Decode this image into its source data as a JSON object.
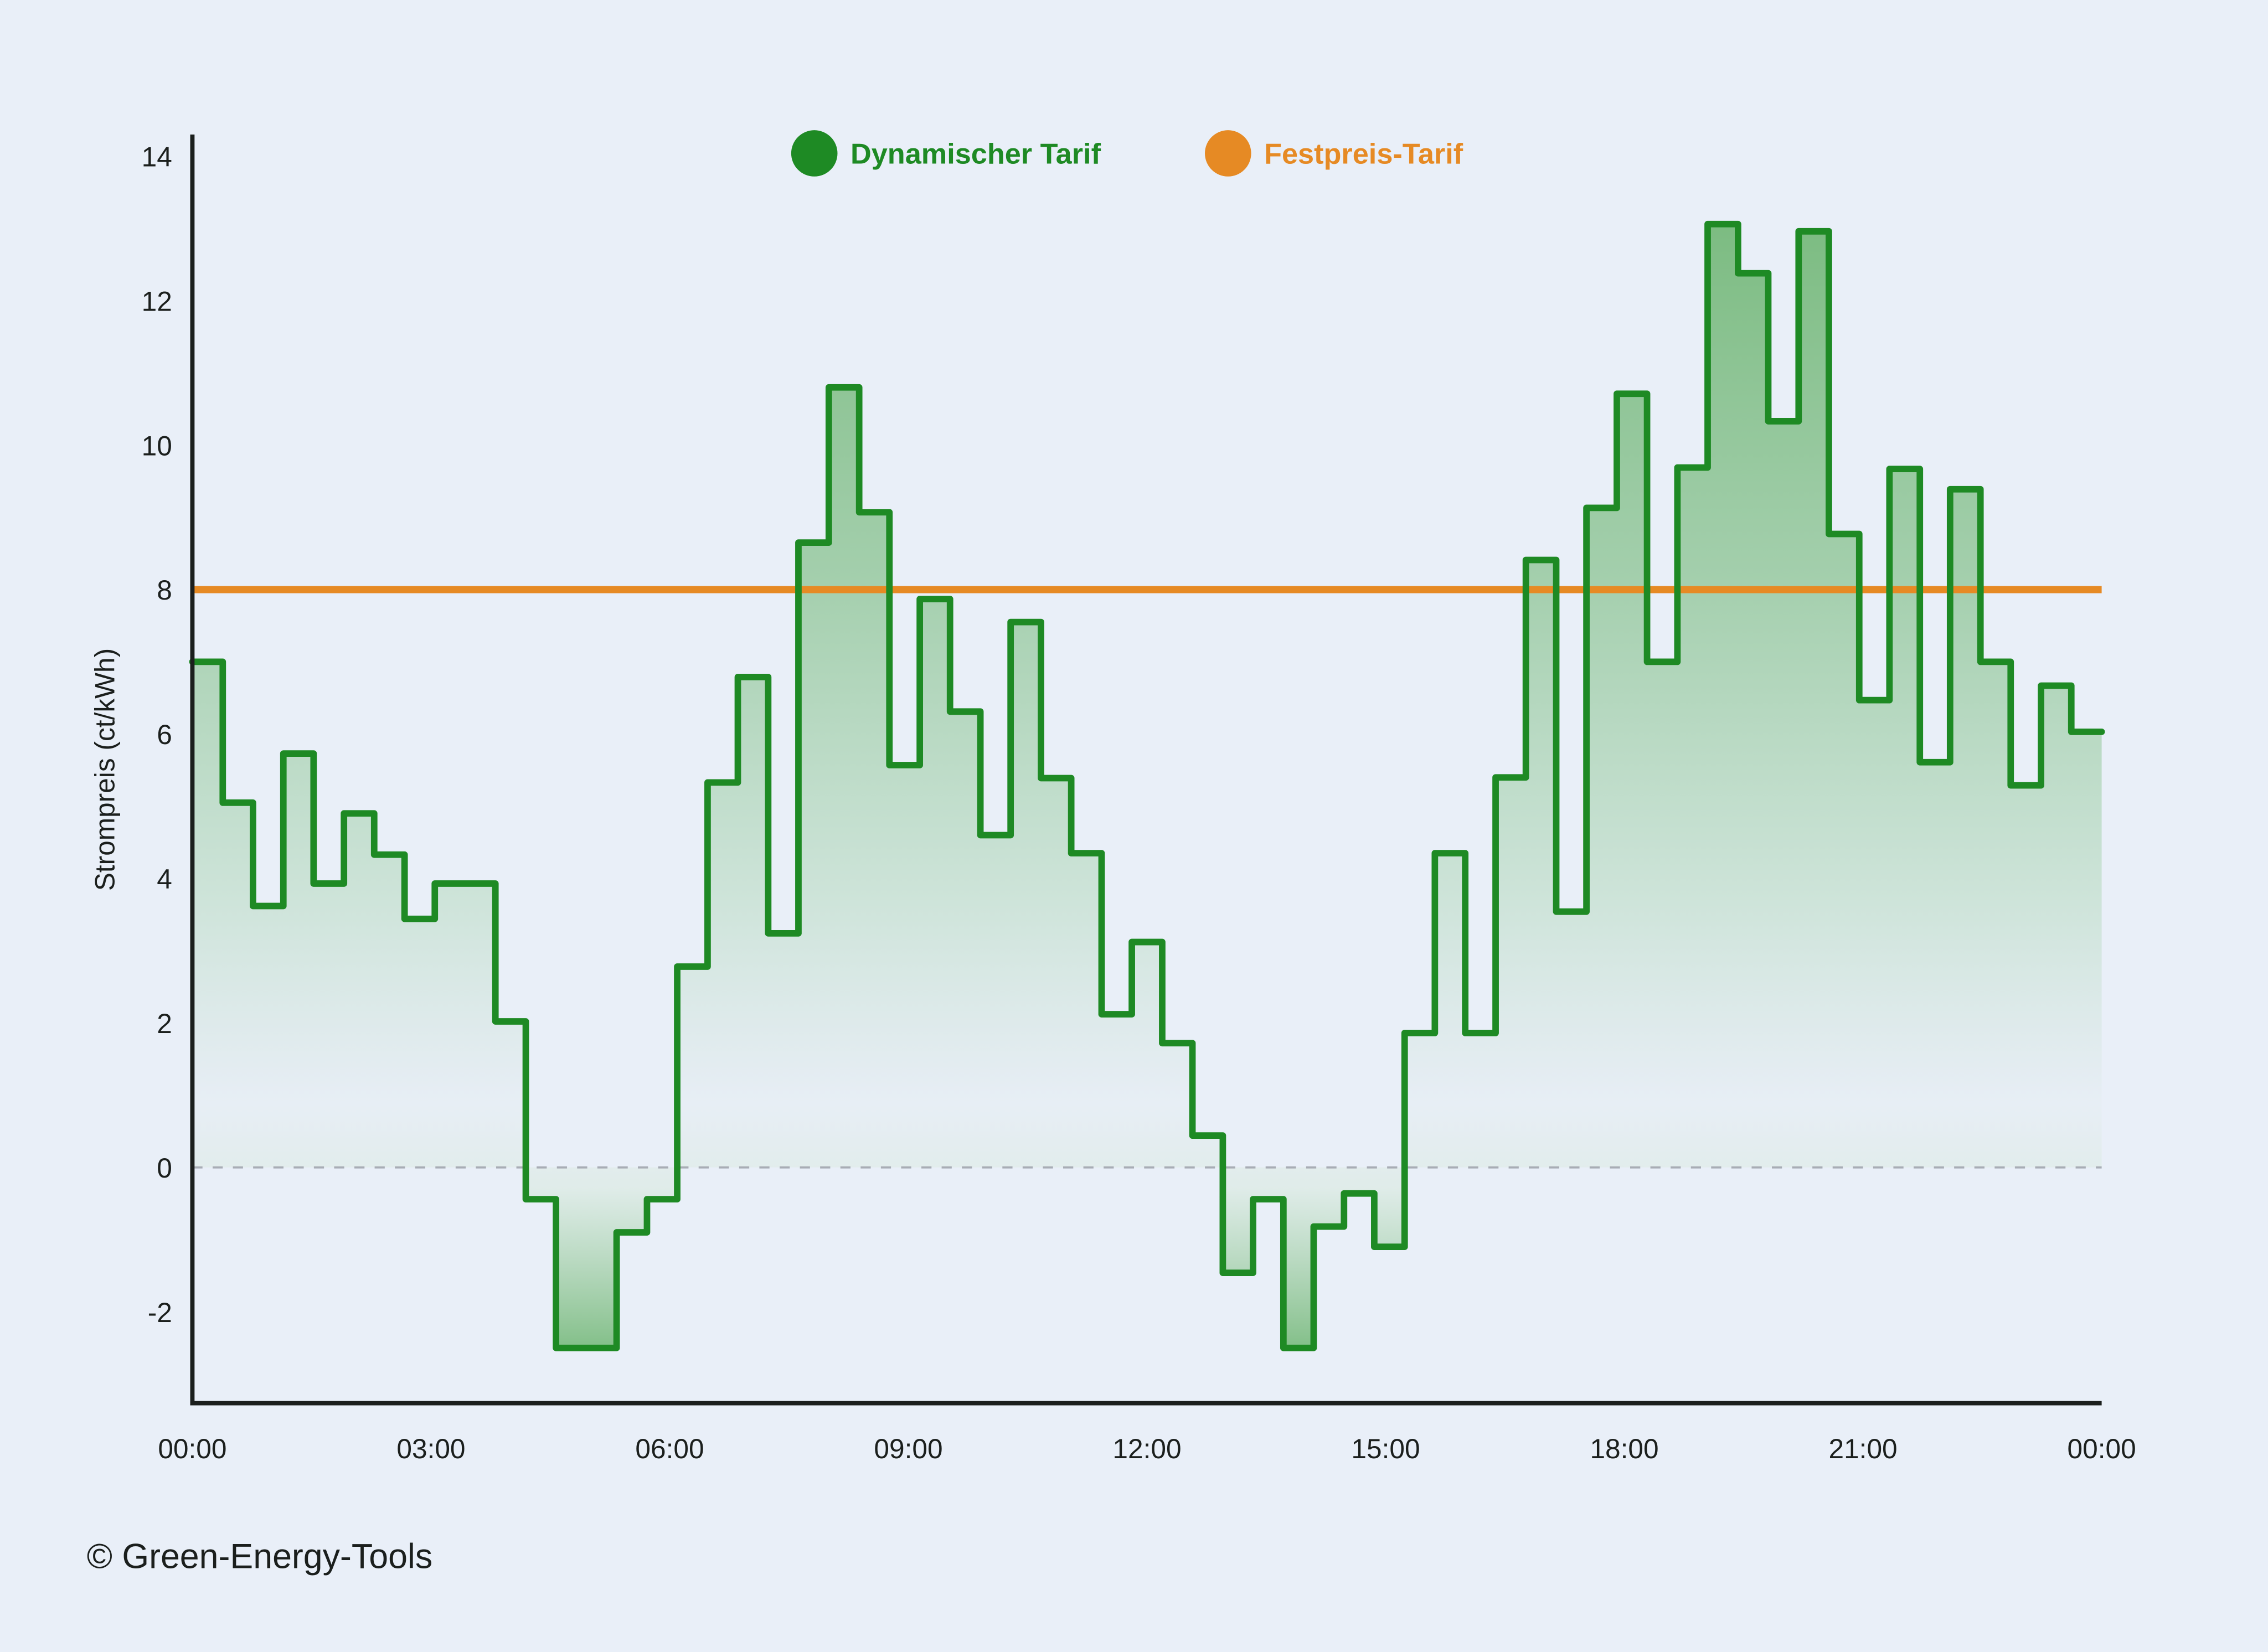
{
  "chart_data": {
    "type": "line",
    "subtype": "step-area",
    "title": "",
    "xlabel": "",
    "ylabel": "Strompreis (ct/kWh)",
    "ylim": [
      -3.3,
      14.3
    ],
    "xlim": [
      0,
      24
    ],
    "yticks": [
      -2,
      0,
      2,
      4,
      6,
      8,
      10,
      12,
      14
    ],
    "ytick_labels": [
      "-2",
      "0",
      "2",
      "4",
      "6",
      "8",
      "10",
      "12",
      "14"
    ],
    "xticks": [
      0,
      3,
      6,
      9,
      12,
      15,
      18,
      21,
      24
    ],
    "xtick_labels": [
      "00:00",
      "03:00",
      "06:00",
      "09:00",
      "12:00",
      "15:00",
      "18:00",
      "21:00",
      "00:00"
    ],
    "grid": false,
    "zero_line": {
      "style": "dashed",
      "color": "#a8adb5"
    },
    "legend_position": "top-center",
    "legend": [
      {
        "label": "Dynamischer Tarif",
        "color": "#1e8a24"
      },
      {
        "label": "Festpreis-Tarif",
        "color": "#e68a24"
      }
    ],
    "series": [
      {
        "name": "Dynamischer Tarif",
        "color": "#1e8a24",
        "kind": "step",
        "step_hours": 0.381,
        "values": [
          7.0,
          5.05,
          3.62,
          5.73,
          3.93,
          4.9,
          4.33,
          3.44,
          3.93,
          3.93,
          2.02,
          -0.44,
          -2.5,
          -2.5,
          -0.9,
          -0.44,
          2.78,
          5.33,
          6.79,
          3.24,
          8.65,
          10.8,
          9.07,
          5.57,
          7.87,
          6.31,
          4.6,
          7.55,
          5.39,
          4.35,
          2.12,
          3.12,
          1.72,
          0.44,
          -1.46,
          -0.44,
          -2.5,
          -0.82,
          -0.36,
          -1.1,
          1.86,
          4.35,
          1.86,
          5.4,
          8.41,
          3.54,
          9.13,
          10.71,
          7.0,
          9.69,
          13.06,
          12.38,
          10.33,
          12.96,
          8.77,
          6.47,
          9.67,
          5.61,
          9.39,
          7.0,
          5.29,
          6.67,
          6.03
        ]
      },
      {
        "name": "Festpreis-Tarif",
        "color": "#e68a24",
        "kind": "constant",
        "value": 8.0
      }
    ]
  },
  "credit": "© Green-Energy-Tools",
  "colors": {
    "background": "#e9eff8",
    "axis": "#1b1f1d",
    "dynamic": "#1e8a24",
    "fixed": "#e68a24"
  }
}
